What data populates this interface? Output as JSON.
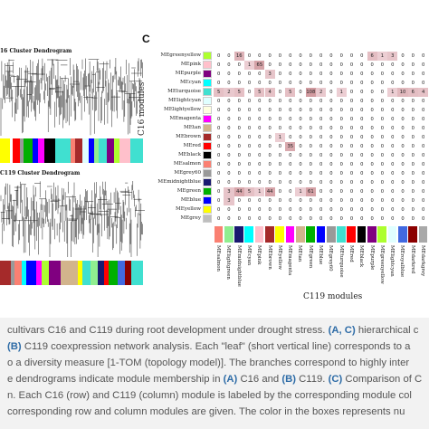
{
  "figure": {
    "dendrogram_c16_title": "16 Cluster Dendrogram",
    "dendrogram_c119_title": "C119 Cluster Dendrogram",
    "panel_c_label": "C",
    "y_axis_title": "C16 modules",
    "x_axis_title": "C119 modules",
    "row_labels": [
      "MEgreenyellow",
      "MEpink",
      "MEpurple",
      "MEcyan",
      "MEturquoise",
      "MElightcyan",
      "MElightyellow",
      "MEmagenta",
      "MEtan",
      "MEbrown",
      "MEred",
      "MEblack",
      "MEsalmon",
      "MEgrey60",
      "MEmidnightblue",
      "MEgreen",
      "MEblue",
      "MEyellow",
      "MEgrey"
    ],
    "row_colors": [
      "#adff2f",
      "#ffc0cb",
      "#800080",
      "#00ffff",
      "#40e0d0",
      "#e0ffff",
      "#ffffe0",
      "#ff00ff",
      "#d2b48c",
      "#a52a2a",
      "#ff0000",
      "#000000",
      "#fa8072",
      "#999999",
      "#191970",
      "#00b000",
      "#0000ff",
      "#ffff00",
      "#bebebe"
    ],
    "col_labels": [
      "MEsalmon",
      "MElightgreen",
      "MEmidnightblue",
      "MEcyan",
      "MEpink",
      "MEbrown",
      "MEyellow",
      "MEmagenta",
      "MEtan",
      "MEgreen",
      "MEblue",
      "MEgrey60",
      "MEturquoise",
      "MEred",
      "MEblack",
      "MEpurple",
      "MEgreenyellow",
      "MElightcyan",
      "MEroyalblue",
      "MEdarkred",
      "MEdarkgrey"
    ],
    "col_colors": [
      "#fa8072",
      "#90ee90",
      "#191970",
      "#00ffff",
      "#ffc0cb",
      "#a52a2a",
      "#ffff00",
      "#ff00ff",
      "#d2b48c",
      "#00b000",
      "#0000ff",
      "#999999",
      "#40e0d0",
      "#ff0000",
      "#000000",
      "#800080",
      "#adff2f",
      "#e0ffff",
      "#4169e1",
      "#8b0000",
      "#a9a9a9"
    ],
    "matrix": [
      [
        "0",
        "0",
        "16",
        "0",
        "0",
        "0",
        "0",
        "0",
        "0",
        "0",
        "0",
        "0",
        "0",
        "0",
        "0",
        "6",
        "1",
        "3",
        "0",
        "0",
        "0"
      ],
      [
        "0",
        "0",
        "0",
        "1",
        "65",
        "0",
        "0",
        "0",
        "0",
        "0",
        "0",
        "0",
        "0",
        "0",
        "0",
        "0",
        "0",
        "0",
        "0",
        "0",
        "0"
      ],
      [
        "0",
        "0",
        "0",
        "0",
        "0",
        "3",
        "0",
        "0",
        "0",
        "0",
        "0",
        "0",
        "0",
        "0",
        "0",
        "0",
        "0",
        "0",
        "0",
        "0",
        "0"
      ],
      [
        "0",
        "0",
        "0",
        "0",
        "0",
        "0",
        "0",
        "0",
        "0",
        "0",
        "0",
        "0",
        "0",
        "0",
        "0",
        "0",
        "0",
        "0",
        "0",
        "0",
        "0"
      ],
      [
        "5",
        "2",
        "5",
        "0",
        "5",
        "4",
        "0",
        "5",
        "0",
        "108",
        "2",
        "0",
        "1",
        "0",
        "0",
        "0",
        "0",
        "1",
        "10",
        "6",
        "4"
      ],
      [
        "0",
        "0",
        "0",
        "0",
        "0",
        "0",
        "0",
        "0",
        "0",
        "0",
        "0",
        "0",
        "0",
        "0",
        "0",
        "0",
        "0",
        "0",
        "0",
        "0",
        "0"
      ],
      [
        "0",
        "0",
        "0",
        "0",
        "0",
        "0",
        "0",
        "0",
        "0",
        "0",
        "0",
        "0",
        "0",
        "0",
        "0",
        "0",
        "0",
        "0",
        "0",
        "0",
        "0"
      ],
      [
        "0",
        "0",
        "0",
        "0",
        "0",
        "0",
        "0",
        "0",
        "0",
        "0",
        "0",
        "0",
        "0",
        "0",
        "0",
        "0",
        "0",
        "0",
        "0",
        "0",
        "0"
      ],
      [
        "0",
        "0",
        "0",
        "0",
        "0",
        "0",
        "0",
        "0",
        "0",
        "0",
        "0",
        "0",
        "0",
        "0",
        "0",
        "0",
        "0",
        "0",
        "0",
        "0",
        "0"
      ],
      [
        "0",
        "0",
        "0",
        "0",
        "0",
        "0",
        "1",
        "0",
        "0",
        "0",
        "0",
        "0",
        "0",
        "0",
        "0",
        "0",
        "0",
        "0",
        "0",
        "0",
        "0"
      ],
      [
        "0",
        "0",
        "0",
        "0",
        "0",
        "0",
        "0",
        "35",
        "0",
        "0",
        "0",
        "0",
        "0",
        "0",
        "0",
        "0",
        "0",
        "0",
        "0",
        "0",
        "0"
      ],
      [
        "0",
        "0",
        "0",
        "0",
        "0",
        "0",
        "0",
        "0",
        "0",
        "0",
        "0",
        "0",
        "0",
        "0",
        "0",
        "0",
        "0",
        "0",
        "0",
        "0",
        "0"
      ],
      [
        "0",
        "0",
        "0",
        "0",
        "0",
        "0",
        "0",
        "0",
        "0",
        "0",
        "0",
        "0",
        "0",
        "0",
        "0",
        "0",
        "0",
        "0",
        "0",
        "0",
        "0"
      ],
      [
        "0",
        "0",
        "0",
        "0",
        "0",
        "0",
        "0",
        "0",
        "0",
        "0",
        "0",
        "0",
        "0",
        "0",
        "0",
        "0",
        "0",
        "0",
        "0",
        "0",
        "0"
      ],
      [
        "0",
        "0",
        "0",
        "0",
        "0",
        "0",
        "0",
        "0",
        "0",
        "0",
        "0",
        "0",
        "0",
        "0",
        "0",
        "0",
        "0",
        "0",
        "0",
        "0",
        "0"
      ],
      [
        "0",
        "3",
        "44",
        "5",
        "1",
        "44",
        "0",
        "0",
        "1",
        "61",
        "0",
        "0",
        "0",
        "0",
        "0",
        "0",
        "0",
        "0",
        "0",
        "0",
        "0"
      ],
      [
        "0",
        "3",
        "0",
        "0",
        "0",
        "0",
        "0",
        "0",
        "0",
        "0",
        "0",
        "0",
        "0",
        "0",
        "0",
        "0",
        "0",
        "0",
        "0",
        "0",
        "0"
      ],
      [
        "0",
        "0",
        "0",
        "0",
        "0",
        "0",
        "0",
        "0",
        "0",
        "0",
        "0",
        "0",
        "0",
        "0",
        "0",
        "0",
        "0",
        "0",
        "0",
        "0",
        "0"
      ],
      [
        "0",
        "0",
        "0",
        "0",
        "0",
        "0",
        "0",
        "0",
        "0",
        "0",
        "0",
        "0",
        "0",
        "0",
        "0",
        "0",
        "0",
        "0",
        "0",
        "0",
        "0"
      ]
    ],
    "c16_strip_colors": [
      "#ffff00",
      "#ffffff",
      "#ff0000",
      "#999999",
      "#00b000",
      "#0000ff",
      "#ff00ff",
      "#000000",
      "#40e0d0",
      "#fa8072",
      "#a52a2a",
      "#e0ffff",
      "#0000ff",
      "#90ee90",
      "#40e0d0",
      "#800080",
      "#adff2f",
      "#ffc0cb",
      "#40e0d0"
    ],
    "c119_strip_colors": [
      "#a52a2a",
      "#999999",
      "#fa8072",
      "#00ffff",
      "#0000ff",
      "#ff00ff",
      "#adff2f",
      "#800080",
      "#d2b48c",
      "#ffff00",
      "#40e0d0",
      "#90ee90",
      "#191970",
      "#ff0000",
      "#00b000",
      "#4169e1",
      "#8b0000",
      "#40e0d0"
    ]
  },
  "caption": {
    "line1_pre": "cultivars C16 and C119 during root development under drought stress. ",
    "line1_link": "(A, C)",
    "line1_post": " hierarchical c",
    "line2_link": "(B)",
    "line2_post": " C119 coexpression network analysis. Each \"leaf\" (short vertical line) corresponds to a",
    "line3": "o a diversity measure [1-TOM (topology model)]. The branches correspond to highly inter",
    "line4_pre": "e dendrograms indicate module membership in ",
    "line4_link1": "(A)",
    "line4_mid": " C16 and ",
    "line4_link2": "(B)",
    "line4_mid2": " C119. ",
    "line4_link3": "(C)",
    "line4_post": " Comparison of C",
    "line5": "n. Each C16 (row) and C119 (column) module is labeled by the corresponding module col",
    "line6": "corresponding row and column modules are given. The color in the boxes represents nu"
  }
}
